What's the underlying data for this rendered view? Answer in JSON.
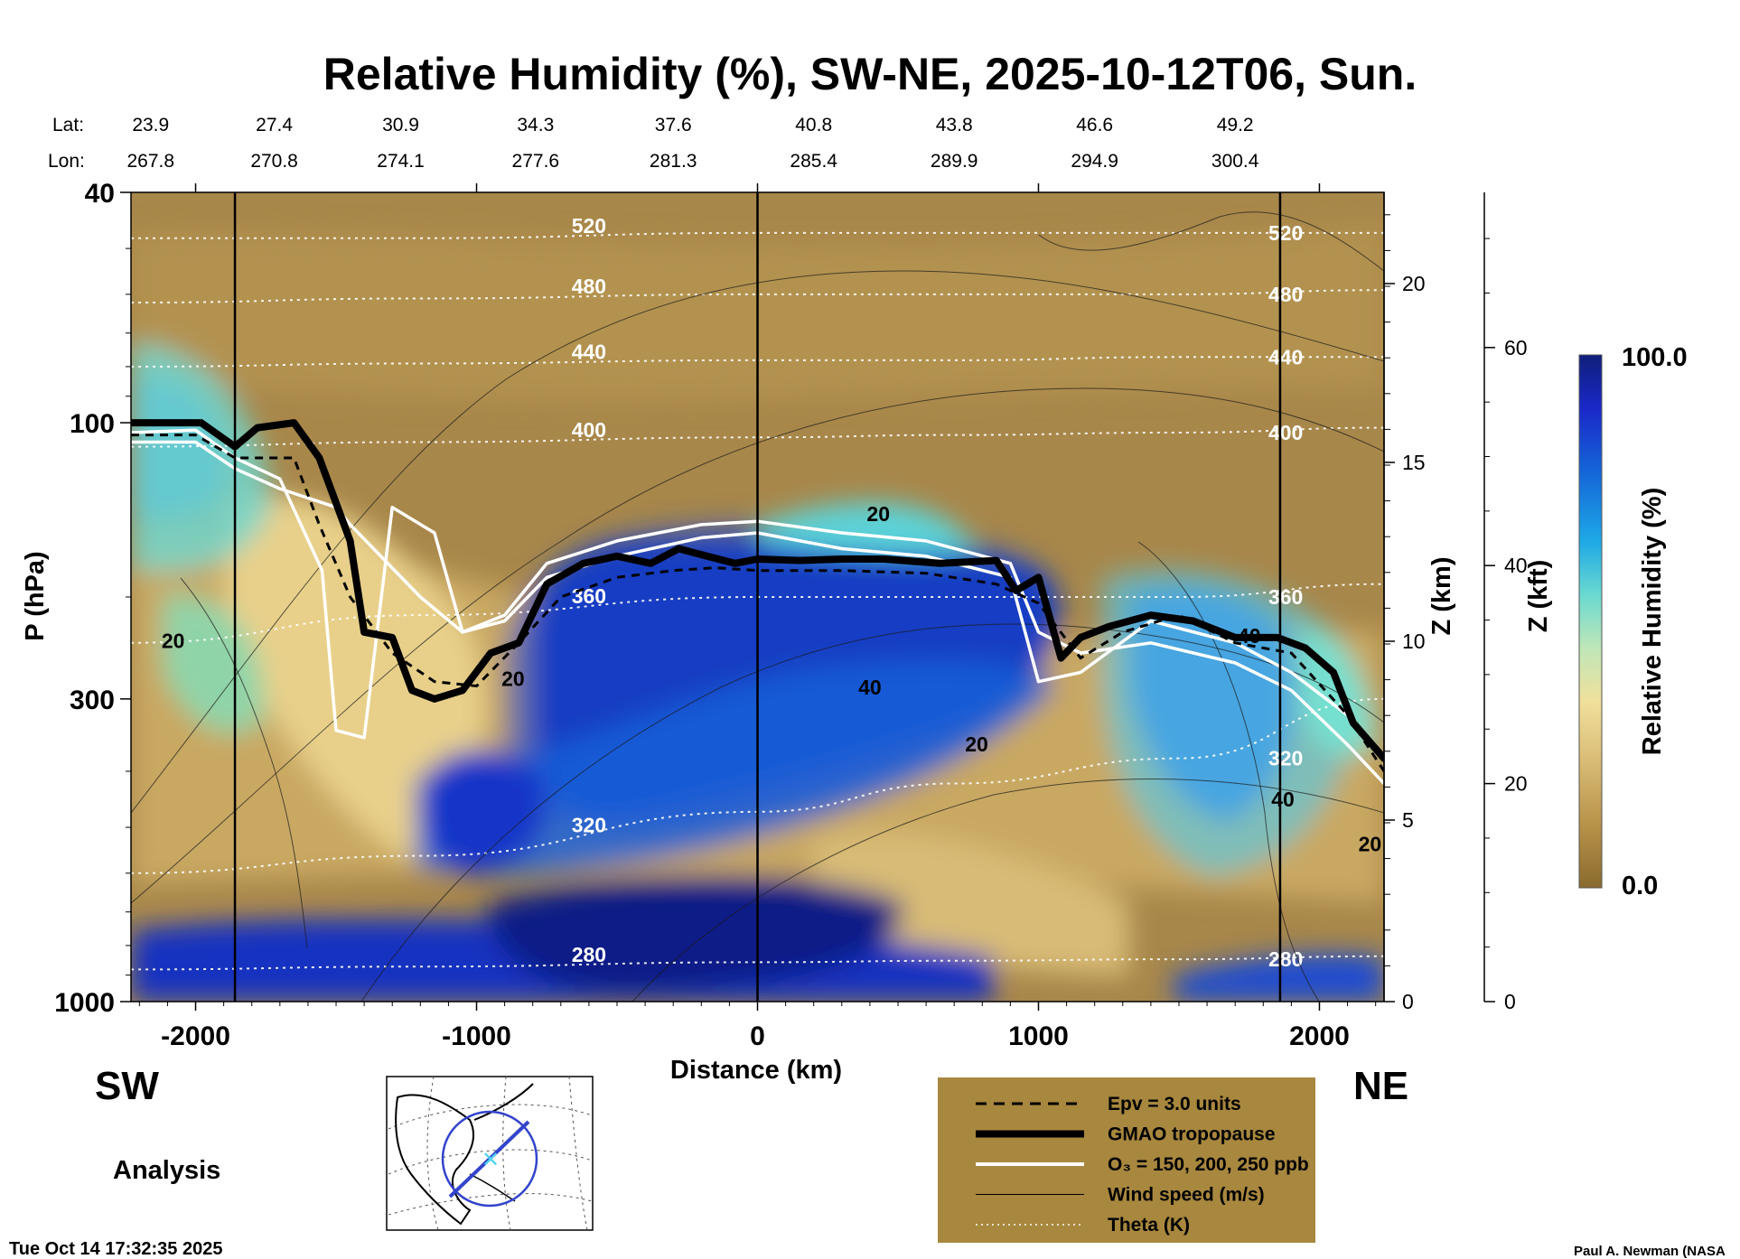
{
  "chart_data": {
    "type": "heatmap",
    "title": "Relative Humidity (%), SW-NE, 2025-10-12T06, Sun.",
    "xlabel": "Distance (km)",
    "ylabel": "P (hPa)",
    "z_km_label": "Z (km)",
    "z_kft_label": "Z (kft)",
    "xlim": [
      -2230,
      2230
    ],
    "ylim_hpa": [
      1000,
      40
    ],
    "y_scale": "log",
    "x_ticks": [
      -2000,
      -1000,
      0,
      1000,
      2000
    ],
    "x_tick_labels": [
      "-2000",
      "-1000",
      "0",
      "1000",
      "2000"
    ],
    "y_ticks": [
      40,
      100,
      300,
      1000
    ],
    "y_tick_labels": [
      "40",
      "100",
      "300",
      "1000"
    ],
    "z_km_ticks": [
      0,
      5,
      10,
      15,
      20
    ],
    "z_km_tick_labels": [
      "0",
      "5",
      "10",
      "15",
      "20"
    ],
    "z_kft_ticks": [
      0,
      20,
      40,
      60
    ],
    "z_kft_tick_labels": [
      "0",
      "20",
      "40",
      "60"
    ],
    "vertical_lines_km": [
      -1860,
      0,
      1860
    ],
    "lat_label": "Lat:",
    "lon_label": "Lon:",
    "lat_values": [
      "23.9",
      "27.4",
      "30.9",
      "34.3",
      "37.6",
      "40.8",
      "43.8",
      "46.6",
      "49.2"
    ],
    "lon_values": [
      "267.8",
      "270.8",
      "274.1",
      "277.6",
      "281.3",
      "285.4",
      "289.9",
      "294.9",
      "300.4"
    ],
    "latlon_positions_km": [
      -2160,
      -1720,
      -1270,
      -790,
      -300,
      200,
      700,
      1200,
      1700
    ],
    "colorbar": {
      "label": "Relative Humidity (%)",
      "min": 0.0,
      "max": 100.0,
      "min_label": "0.0",
      "max_label": "100.0",
      "colors": [
        "#8a6a2e",
        "#b8934a",
        "#dcc07a",
        "#f0e09c",
        "#bfe7b8",
        "#6ad9d0",
        "#1ea9e6",
        "#1466d8",
        "#1a28c8",
        "#0f1f7a"
      ]
    },
    "theta_contours_K": [
      {
        "label": "280",
        "pressures_hpa": [
          880,
          870,
          855,
          850,
          845,
          835
        ]
      },
      {
        "label": "320",
        "pressures_hpa": [
          600,
          560,
          470,
          420,
          380,
          300
        ]
      },
      {
        "label": "360",
        "pressures_hpa": [
          240,
          215,
          200,
          200,
          200,
          190
        ]
      },
      {
        "label": "400",
        "pressures_hpa": [
          110,
          108,
          106,
          105,
          104,
          102
        ]
      },
      {
        "label": "440",
        "pressures_hpa": [
          80,
          79,
          78,
          78,
          77,
          77
        ]
      },
      {
        "label": "480",
        "pressures_hpa": [
          62,
          61,
          60,
          60,
          60,
          59
        ]
      },
      {
        "label": "520",
        "pressures_hpa": [
          48,
          48,
          47,
          47,
          47,
          47
        ]
      }
    ],
    "theta_x_km": [
      -2230,
      -1200,
      0,
      700,
      1500,
      2230
    ],
    "tropopause": {
      "x_km": [
        -2230,
        -2100,
        -1980,
        -1860,
        -1780,
        -1650,
        -1560,
        -1450,
        -1400,
        -1300,
        -1230,
        -1150,
        -1050,
        -950,
        -850,
        -750,
        -620,
        -500,
        -380,
        -280,
        -180,
        -80,
        0,
        150,
        300,
        450,
        650,
        850,
        920,
        1000,
        1080,
        1150,
        1250,
        1400,
        1550,
        1700,
        1850,
        1950,
        2050,
        2120,
        2230
      ],
      "p_hpa": [
        100,
        100,
        100,
        110,
        102,
        100,
        115,
        160,
        230,
        235,
        290,
        300,
        290,
        250,
        240,
        190,
        175,
        170,
        175,
        165,
        170,
        175,
        172,
        173,
        172,
        172,
        175,
        173,
        195,
        185,
        255,
        235,
        225,
        215,
        220,
        235,
        235,
        245,
        270,
        330,
        380
      ]
    },
    "epv_line": {
      "x_km": [
        -2230,
        -2000,
        -1860,
        -1650,
        -1560,
        -1450,
        -1300,
        -1150,
        -1000,
        -850,
        -700,
        -500,
        -300,
        -150,
        0,
        300,
        600,
        850,
        1000,
        1150,
        1300,
        1500,
        1700,
        1900,
        2100,
        2230
      ],
      "p_hpa": [
        105,
        105,
        115,
        115,
        150,
        200,
        250,
        280,
        285,
        240,
        200,
        185,
        180,
        178,
        180,
        180,
        182,
        190,
        205,
        255,
        230,
        215,
        240,
        250,
        320,
        400
      ]
    },
    "ozone_contours_ppb": [
      {
        "label": "O3 outer",
        "x_km": [
          -2230,
          -2000,
          -1860,
          -1700,
          -1500,
          -1450,
          -1200,
          -1050,
          -900,
          -750,
          -500,
          -200,
          0,
          300,
          600,
          900,
          1000,
          1150,
          1400,
          1700,
          1900,
          2100,
          2230
        ],
        "p_hpa": [
          108,
          108,
          120,
          130,
          140,
          150,
          200,
          230,
          215,
          175,
          160,
          150,
          148,
          155,
          160,
          175,
          230,
          250,
          240,
          260,
          290,
          360,
          420
        ]
      },
      {
        "label": "O3 middle",
        "x_km": [
          -2230,
          -2000,
          -1860,
          -1700,
          -1550,
          -1500,
          -1400,
          -1300,
          -1150,
          -1050,
          -900,
          -750,
          -500,
          -200,
          0,
          300,
          600,
          900,
          1000,
          1150,
          1400,
          1700,
          1900,
          2100,
          2230
        ],
        "p_hpa": [
          104,
          103,
          115,
          125,
          180,
          340,
          350,
          140,
          155,
          230,
          220,
          185,
          170,
          158,
          155,
          165,
          170,
          185,
          280,
          270,
          220,
          240,
          270,
          320,
          380
        ]
      }
    ],
    "wind_speed_labels_ms": [
      {
        "label": "20",
        "x_km": -2080,
        "p_hpa": 245
      },
      {
        "label": "20",
        "x_km": -870,
        "p_hpa": 285
      },
      {
        "label": "20",
        "x_km": 430,
        "p_hpa": 148
      },
      {
        "label": "40",
        "x_km": 400,
        "p_hpa": 295
      },
      {
        "label": "20",
        "x_km": 780,
        "p_hpa": 370
      },
      {
        "label": "40",
        "x_km": 1870,
        "p_hpa": 460
      },
      {
        "label": "20",
        "x_km": 2180,
        "p_hpa": 550
      },
      {
        "label": "40",
        "x_km": 1750,
        "p_hpa": 240
      }
    ],
    "legend": [
      {
        "label": "Epv = 3.0 units",
        "style": "dashed"
      },
      {
        "label": "GMAO tropopause",
        "style": "thick"
      },
      {
        "label": "O₃ = 150, 200, 250 ppb",
        "style": "white"
      },
      {
        "label": "Wind speed (m/s)",
        "style": "thin"
      },
      {
        "label": "Theta (K)",
        "style": "dotted"
      }
    ],
    "legend_placement": "bottom-center"
  },
  "labels": {
    "sw": "SW",
    "ne": "NE",
    "analysis": "Analysis",
    "timestamp": "Tue Oct 14 17:32:35 2025",
    "credit": "Paul A. Newman (NASA"
  },
  "colors": {
    "background_brown": "#a8874a",
    "legend_box": "#a8873e",
    "tropopause": "#000000",
    "ozone": "#ffffff",
    "map_circle": "#3344cc"
  },
  "inset_map": {
    "icon": "globe-map-icon"
  }
}
